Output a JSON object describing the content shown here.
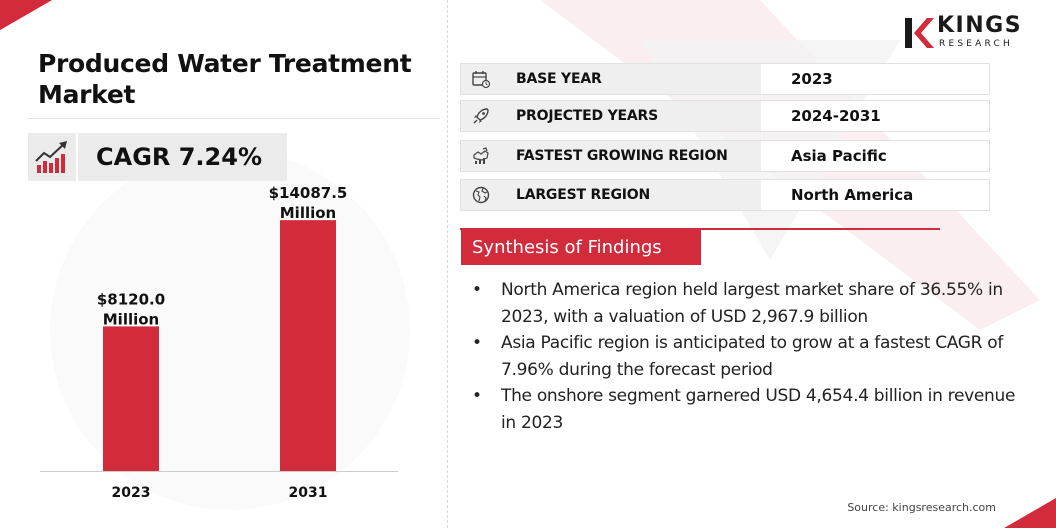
{
  "title": "Produced Water Treatment Market",
  "cagr": "CAGR 7.24%",
  "logo": {
    "word": "KINGS",
    "sub": "RESEARCH"
  },
  "info_rows": [
    {
      "icon": "calendar-icon",
      "key": "BASE YEAR",
      "value": "2023"
    },
    {
      "icon": "rocket-icon",
      "key": "PROJECTED YEARS",
      "value": "2024-2031"
    },
    {
      "icon": "growth-map-icon",
      "key": "FASTEST GROWING REGION",
      "value": "Asia Pacific"
    },
    {
      "icon": "globe-icon",
      "key": "LARGEST REGION",
      "value": "North America"
    }
  ],
  "synthesis": {
    "heading": "Synthesis of Findings",
    "items": [
      "North America region held largest market share of 36.55% in 2023, with a valuation of USD 2,967.9 billion",
      "Asia Pacific region is anticipated to grow at a fastest CAGR of 7.96% during the forecast period",
      "The onshore segment garnered USD 4,654.4 billion in revenue in 2023"
    ]
  },
  "source": "Source: kingsresearch.com",
  "colors": {
    "accent": "#d22b3b",
    "panel": "#ebebeb"
  },
  "chart_data": {
    "type": "bar",
    "categories": [
      "2023",
      "2031"
    ],
    "values": [
      8120.0,
      14087.5
    ],
    "data_labels": [
      [
        "$8120.0",
        "Million"
      ],
      [
        "$14087.5",
        "Million"
      ]
    ],
    "title": "",
    "xlabel": "",
    "ylabel": "",
    "ylim": [
      0,
      15500
    ],
    "grid": false,
    "bar_color": "#d22b3b"
  }
}
